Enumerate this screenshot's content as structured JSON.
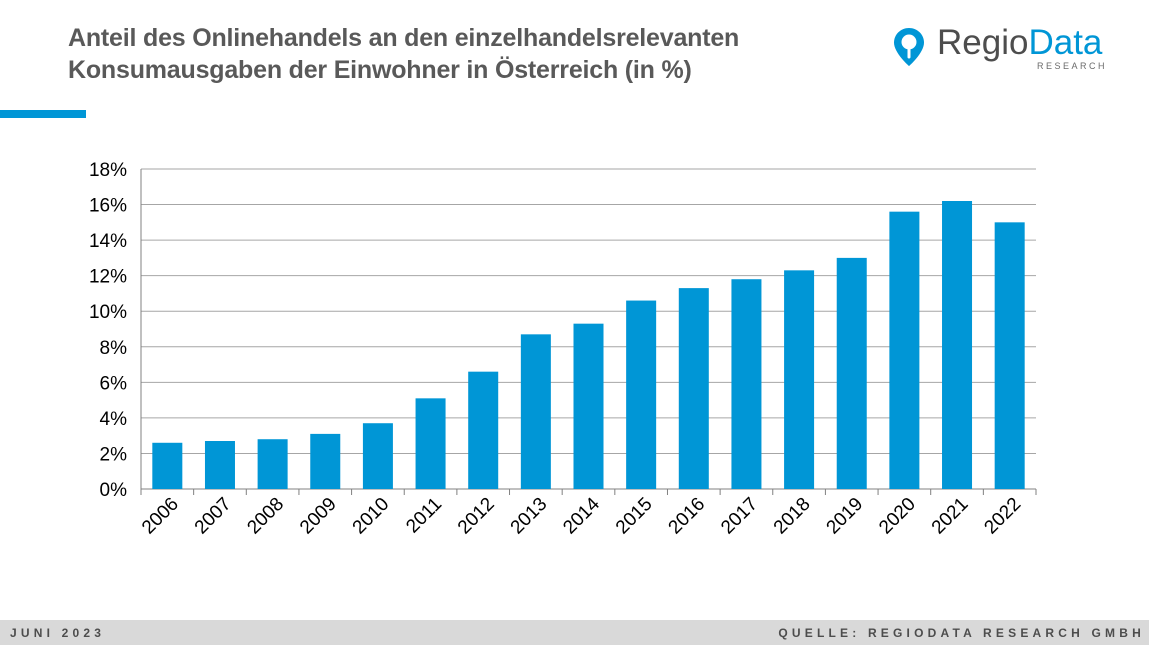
{
  "title": {
    "line1": "Anteil des Onlinehandels an den einzelhandelsrelevanten",
    "line2": "Konsumausgaben der Einwohner in Österreich (in %)"
  },
  "logo": {
    "word_part1": "Regio",
    "word_part2": "Data",
    "subtitle": "RESEARCH",
    "icon": "location-pin-icon"
  },
  "colors": {
    "accent": "#0096d6",
    "bar": "#0096d6",
    "title": "#595959",
    "logo_dark": "#4d4d4d",
    "footer_bg": "#d9d9d9"
  },
  "footer": {
    "left": "JUNI 2023",
    "right": "QUELLE: REGIODATA RESEARCH GMBH"
  },
  "chart_data": {
    "type": "bar",
    "categories": [
      "2006",
      "2007",
      "2008",
      "2009",
      "2010",
      "2011",
      "2012",
      "2013",
      "2014",
      "2015",
      "2016",
      "2017",
      "2018",
      "2019",
      "2020",
      "2021",
      "2022"
    ],
    "values": [
      2.6,
      2.7,
      2.8,
      3.1,
      3.7,
      5.1,
      6.6,
      8.7,
      9.3,
      10.6,
      11.3,
      11.8,
      12.3,
      13.0,
      15.6,
      16.2,
      15.0
    ],
    "yticks": [
      0,
      2,
      4,
      6,
      8,
      10,
      12,
      14,
      16,
      18
    ],
    "ytick_labels": [
      "0%",
      "2%",
      "4%",
      "6%",
      "8%",
      "10%",
      "12%",
      "14%",
      "16%",
      "18%"
    ],
    "ylim": [
      0,
      18
    ],
    "grid": true,
    "legend": "none"
  }
}
